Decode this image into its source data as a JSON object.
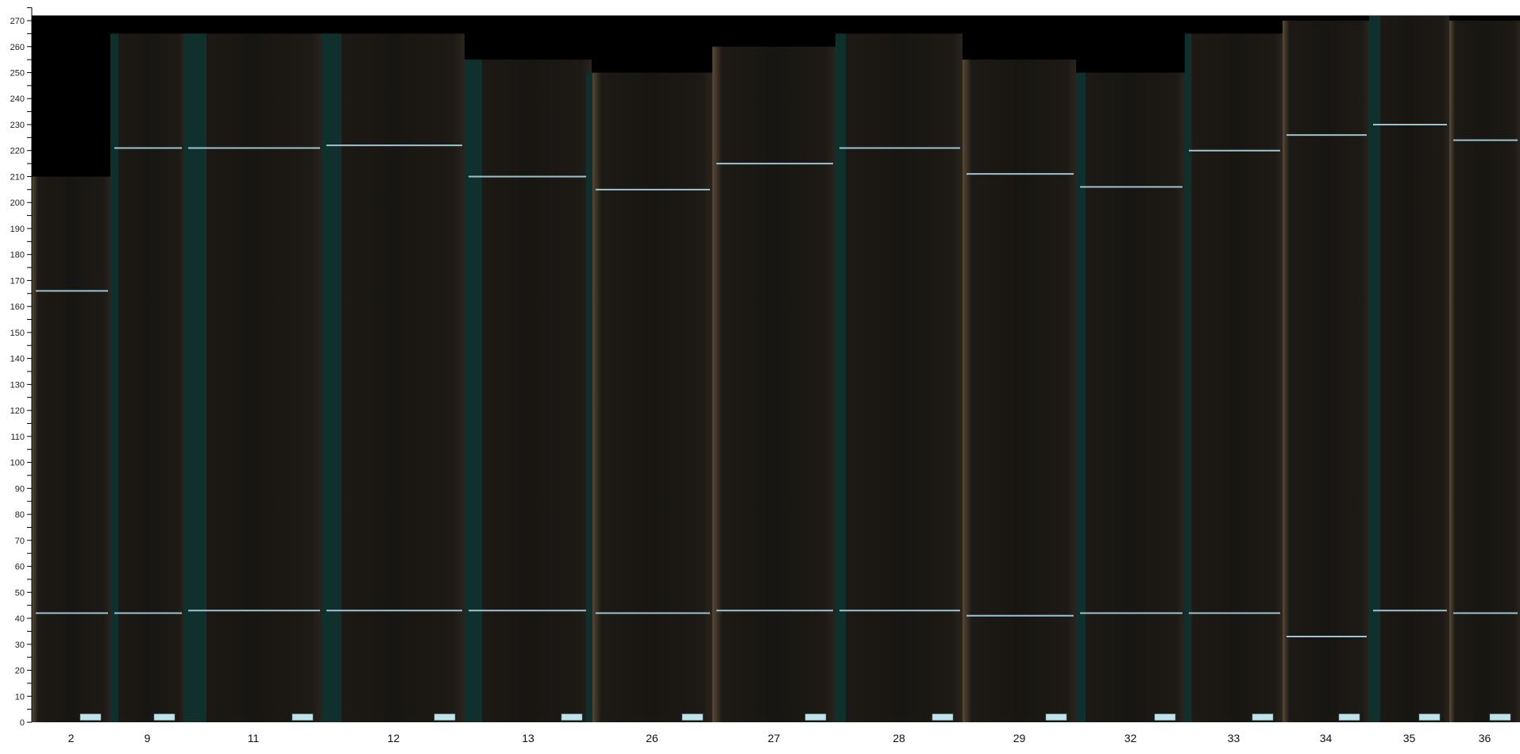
{
  "chart_data": {
    "type": "bar",
    "title": "",
    "xlabel": "",
    "ylabel": "",
    "ylim": [
      0,
      272
    ],
    "yticks_major": [
      0,
      10,
      20,
      30,
      40,
      50,
      60,
      70,
      80,
      90,
      100,
      110,
      120,
      130,
      140,
      150,
      160,
      170,
      180,
      190,
      200,
      210,
      220,
      230,
      240,
      250,
      260,
      270
    ],
    "ytick_minor_step": 5,
    "grid": false,
    "categories": [
      "2",
      "9",
      "11",
      "12",
      "13",
      "26",
      "27",
      "28",
      "29",
      "32",
      "33",
      "34",
      "35",
      "36"
    ],
    "board_tops": [
      210,
      265,
      265,
      265,
      255,
      250,
      260,
      265,
      255,
      250,
      265,
      270,
      275,
      270
    ],
    "upper_line": [
      166,
      221,
      221,
      222,
      210,
      205,
      215,
      221,
      211,
      206,
      220,
      226,
      230,
      224
    ],
    "lower_line": [
      42,
      42,
      43,
      43,
      43,
      42,
      43,
      43,
      41,
      42,
      42,
      33,
      43,
      42
    ],
    "colors": {
      "background": "#000000",
      "board": "#1d1a16",
      "edge_strip": "#10302d",
      "sapwood": "#5a4a35",
      "line": "#9ec3cf",
      "tag": "#bfe3ea"
    }
  }
}
